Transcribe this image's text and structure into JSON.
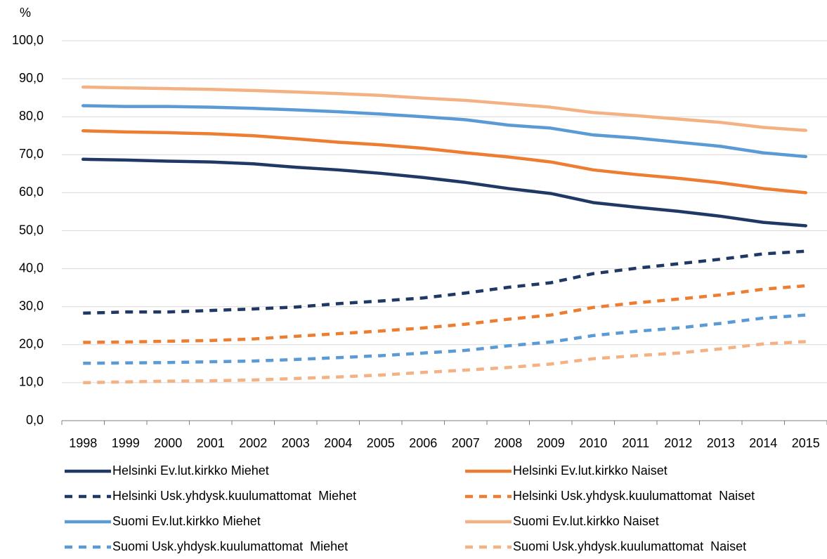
{
  "chart_data": {
    "type": "line",
    "y_label": "%",
    "categories": [
      "1998",
      "1999",
      "2000",
      "2001",
      "2002",
      "2003",
      "2004",
      "2005",
      "2006",
      "2007",
      "2008",
      "2009",
      "2010",
      "2011",
      "2012",
      "2013",
      "2014",
      "2015"
    ],
    "ylim": [
      0,
      100
    ],
    "yticks": [
      {
        "value": 0,
        "label": "0,0"
      },
      {
        "value": 10,
        "label": "10,0"
      },
      {
        "value": 20,
        "label": "20,0"
      },
      {
        "value": 30,
        "label": "30,0"
      },
      {
        "value": 40,
        "label": "40,0"
      },
      {
        "value": 50,
        "label": "50,0"
      },
      {
        "value": 60,
        "label": "60,0"
      },
      {
        "value": 70,
        "label": "70,0"
      },
      {
        "value": 80,
        "label": "80,0"
      },
      {
        "value": 90,
        "label": "90,0"
      },
      {
        "value": 100,
        "label": "100,0"
      }
    ],
    "grid": true,
    "legend": "bottom",
    "series": [
      {
        "name": "Helsinki Ev.lut.kirkko Miehet",
        "color": "#203864",
        "style": "solid",
        "values": [
          68.8,
          68.6,
          68.3,
          68.1,
          67.6,
          66.7,
          66.0,
          65.1,
          64.0,
          62.7,
          61.1,
          59.8,
          57.4,
          56.2,
          55.1,
          53.8,
          52.2,
          51.3
        ]
      },
      {
        "name": "Helsinki Ev.lut.kirkko Naiset",
        "color": "#ed7d31",
        "style": "solid",
        "values": [
          76.3,
          76.0,
          75.8,
          75.5,
          75.0,
          74.2,
          73.3,
          72.6,
          71.7,
          70.5,
          69.4,
          68.1,
          66.0,
          64.8,
          63.8,
          62.6,
          61.1,
          60.0
        ]
      },
      {
        "name": "Helsinki Usk.yhdysk.kuulumattomat  Miehet",
        "color": "#203864",
        "style": "dashed",
        "values": [
          28.3,
          28.6,
          28.6,
          29.0,
          29.4,
          29.9,
          30.8,
          31.5,
          32.3,
          33.6,
          35.1,
          36.3,
          38.7,
          40.1,
          41.3,
          42.5,
          43.9,
          44.6
        ]
      },
      {
        "name": "Helsinki Usk.yhdysk.kuulumattomat  Naiset",
        "color": "#ed7d31",
        "style": "dashed",
        "values": [
          20.6,
          20.7,
          20.9,
          21.1,
          21.5,
          22.2,
          22.9,
          23.6,
          24.4,
          25.4,
          26.7,
          27.8,
          29.8,
          31.0,
          32.0,
          33.1,
          34.6,
          35.5
        ]
      },
      {
        "name": "Suomi Ev.lut.kirkko Miehet",
        "color": "#5b9bd5",
        "style": "solid",
        "values": [
          82.9,
          82.7,
          82.7,
          82.5,
          82.2,
          81.8,
          81.3,
          80.7,
          80.0,
          79.2,
          77.8,
          77.0,
          75.2,
          74.4,
          73.3,
          72.2,
          70.5,
          69.5
        ]
      },
      {
        "name": "Suomi Ev.lut.kirkko Naiset",
        "color": "#f4b183",
        "style": "solid",
        "values": [
          87.8,
          87.6,
          87.4,
          87.2,
          86.9,
          86.5,
          86.1,
          85.6,
          84.9,
          84.3,
          83.4,
          82.5,
          81.1,
          80.3,
          79.4,
          78.5,
          77.2,
          76.4
        ]
      },
      {
        "name": "Suomi Usk.yhdysk.kuulumattomat  Miehet",
        "color": "#5b9bd5",
        "style": "dashed",
        "values": [
          15.1,
          15.2,
          15.3,
          15.5,
          15.7,
          16.1,
          16.6,
          17.1,
          17.8,
          18.5,
          19.7,
          20.7,
          22.4,
          23.5,
          24.4,
          25.6,
          27.0,
          27.8
        ]
      },
      {
        "name": "Suomi Usk.yhdysk.kuulumattomat  Naiset",
        "color": "#f4b183",
        "style": "dashed",
        "values": [
          10.0,
          10.2,
          10.4,
          10.5,
          10.7,
          11.1,
          11.5,
          12.0,
          12.7,
          13.3,
          14.0,
          14.9,
          16.3,
          17.1,
          17.8,
          18.9,
          20.2,
          20.8
        ]
      }
    ]
  }
}
